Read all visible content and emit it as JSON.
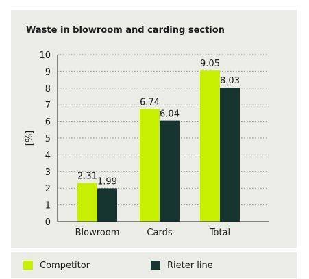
{
  "chart_data": {
    "type": "bar",
    "title": "Waste in blowroom and carding section",
    "ylabel": "[%]",
    "xlabel": "",
    "categories": [
      "Blowroom",
      "Cards",
      "Total"
    ],
    "series": [
      {
        "name": "Competitor",
        "values": [
          2.31,
          6.74,
          9.05
        ],
        "labels": [
          "2.31",
          "6.74",
          "9.05"
        ],
        "color": "#c6f000"
      },
      {
        "name": "Rieter line",
        "values": [
          1.99,
          6.04,
          8.03
        ],
        "labels": [
          "1.99",
          "6.04",
          "8.03"
        ],
        "color": "#16352f"
      }
    ],
    "ylim": [
      0,
      10
    ],
    "yticks": [
      "0",
      "1",
      "2",
      "3",
      "4",
      "5",
      "6",
      "7",
      "8",
      "9",
      "10"
    ],
    "grid": true,
    "legend_position": "bottom"
  }
}
